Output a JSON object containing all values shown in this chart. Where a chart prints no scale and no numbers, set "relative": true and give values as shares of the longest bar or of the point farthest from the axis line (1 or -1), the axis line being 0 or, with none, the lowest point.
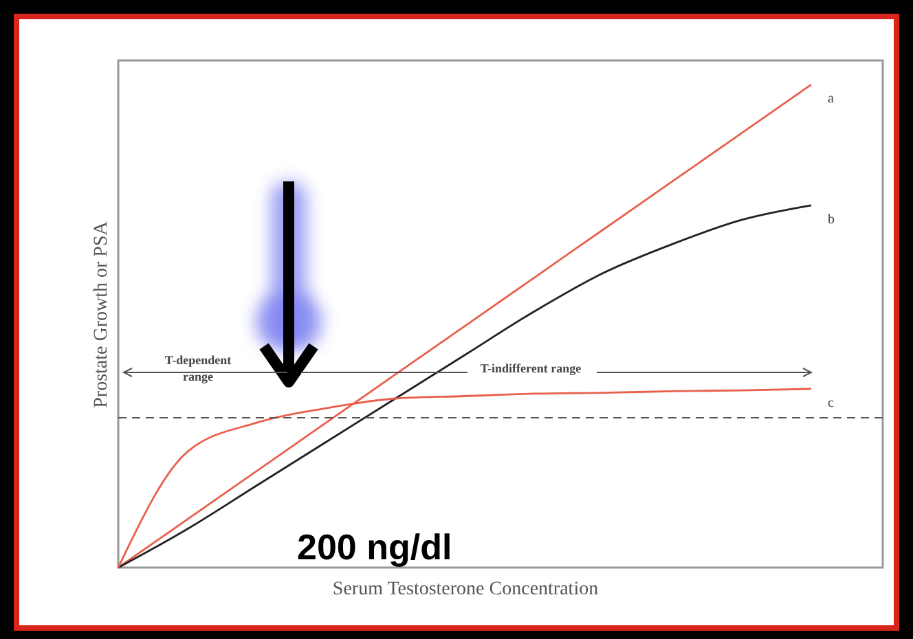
{
  "chart_data": {
    "type": "line",
    "relative": true,
    "xlabel": "Serum Testosterone Concentration",
    "ylabel": "Prostate Growth or PSA",
    "categories": [
      null,
      null,
      null,
      null,
      null,
      null,
      null,
      null,
      null,
      null,
      null
    ],
    "series": [
      {
        "name": "a",
        "color": "#e8604c",
        "values": [
          0,
          0.1,
          0.2,
          0.3,
          0.4,
          0.5,
          0.6,
          0.7,
          0.8,
          0.9,
          1
        ]
      },
      {
        "name": "b",
        "color": "#222222",
        "values": [
          0,
          0.08,
          0.17,
          0.26,
          0.35,
          0.44,
          0.53,
          0.61,
          0.67,
          0.72,
          0.75
        ]
      },
      {
        "name": "c",
        "color": "#e8604c",
        "values": [
          0,
          0.24,
          0.3,
          0.33,
          0.35,
          0.355,
          0.36,
          0.362,
          0.365,
          0.367,
          0.37
        ]
      }
    ],
    "ref_lines": [
      {
        "axis": "y",
        "value": 0.31,
        "line_style": "dashed"
      }
    ],
    "annotations": [
      "T-dependent range",
      "T-indifferent range",
      "200 ng/dl"
    ],
    "grid": false
  }
}
